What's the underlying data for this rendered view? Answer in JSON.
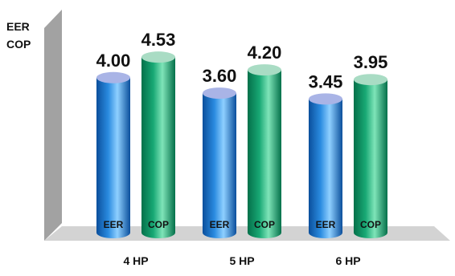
{
  "chart_data": {
    "type": "bar",
    "style": "3d-cylinder",
    "ylabel_lines": [
      "EER",
      "COP"
    ],
    "categories": [
      "4 HP",
      "5 HP",
      "6 HP"
    ],
    "series": [
      {
        "name": "EER",
        "values": [
          4.0,
          3.6,
          3.45
        ],
        "value_labels": [
          "4.00",
          "3.60",
          "3.45"
        ]
      },
      {
        "name": "COP",
        "values": [
          4.53,
          4.2,
          3.95
        ],
        "value_labels": [
          "4.53",
          "4.20",
          "3.95"
        ]
      }
    ],
    "ylim": [
      0,
      4.72
    ],
    "grid": false,
    "colors": {
      "EER": {
        "dark": "#0b4f9c",
        "mid": "#2a8be0",
        "light": "#8fd0ff",
        "cap": "#a9b4e6"
      },
      "COP": {
        "dark": "#04704a",
        "mid": "#18a874",
        "light": "#7fe4b8",
        "cap": "#a9dcc4"
      },
      "wall": "#9a9a9a",
      "wall_light": "#c9c9c9",
      "floor": "#d2d2d2"
    }
  }
}
